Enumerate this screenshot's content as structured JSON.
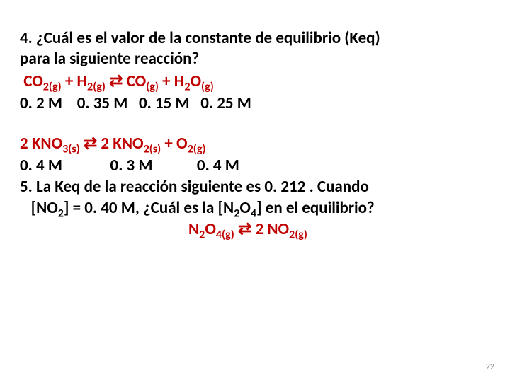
{
  "q4": {
    "line1": "4. ¿Cuál es el valor de la constante de equilibrio (Keq)",
    "line2": "para la siguiente reacción?",
    "eq_pre": " CO",
    "eq_s1": "2(g)",
    "eq_plus1": " + H",
    "eq_s2": "2(g)",
    "eq_arrow": " ⇄  ",
    "eq_co": "CO",
    "eq_s3": "(g)",
    "eq_plus2": " + H",
    "eq_s4": "2",
    "eq_o": "O",
    "eq_s5": "(g)",
    "conc": "0. 2 M    0. 35 M   0. 15 M   0. 25 M"
  },
  "eq2": {
    "p1": "2 KNO",
    "s1": "3(s)",
    "arrow": " ⇄ ",
    "p2": "2 KNO",
    "s2": "2(s)",
    "plus": " + O",
    "s3": "2(g)",
    "conc": "0. 4 M             0. 3 M            0. 4 M"
  },
  "q5": {
    "line1": "5. La Keq de la reacción siguiente es 0. 212 . Cuando",
    "l2a": "   [NO",
    "l2s1": "2",
    "l2b": "] = 0. 40 M, ¿Cuál es la [N",
    "l2s2": "2",
    "l2c": "O",
    "l2s3": "4",
    "l2d": "] en el equilibrio?",
    "eq_p1": "N",
    "eq_s1": "2",
    "eq_p2": "O",
    "eq_s2": "4(g)",
    "eq_arrow": "  ⇄ ",
    "eq_p3": "2 NO",
    "eq_s3": "2(g)"
  },
  "pagenum": "22"
}
